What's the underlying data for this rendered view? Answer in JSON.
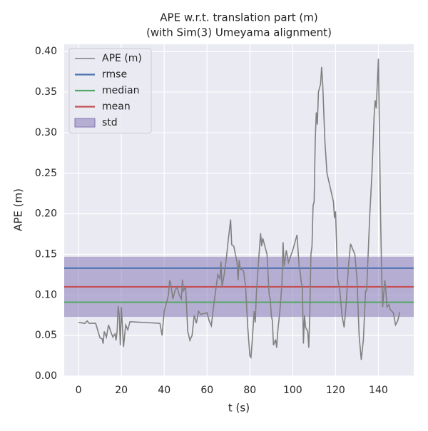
{
  "chart_data": {
    "type": "line",
    "title": "APE w.r.t. translation part (m)",
    "subtitle": "(with Sim(3) Umeyama alignment)",
    "x_label": "t (s)",
    "y_label": "APE (m)",
    "xlim": [
      -6.7,
      156.5
    ],
    "ylim": [
      0,
      0.409
    ],
    "xticks": [
      0,
      20,
      40,
      60,
      80,
      100,
      120,
      140
    ],
    "yticks": [
      {
        "value": 0,
        "label": "0.00"
      },
      {
        "value": 0.05,
        "label": "0.05"
      },
      {
        "value": 0.1,
        "label": "0.10"
      },
      {
        "value": 0.15,
        "label": "0.15"
      },
      {
        "value": 0.2,
        "label": "0.20"
      },
      {
        "value": 0.25,
        "label": "0.25"
      },
      {
        "value": 0.3,
        "label": "0.30"
      },
      {
        "value": 0.35,
        "label": "0.35"
      },
      {
        "value": 0.4,
        "label": "0.40"
      }
    ],
    "grid": true,
    "legend": "upper left",
    "series": [
      {
        "name": "APE (m)",
        "color": "#808080",
        "x": [
          0,
          3,
          4,
          5,
          8,
          10,
          11,
          11.5,
          12,
          13,
          14,
          15,
          16,
          17,
          17.5,
          18,
          18.5,
          19,
          19.5,
          20,
          20.5,
          21,
          22,
          23,
          24,
          38,
          39,
          40,
          41,
          42,
          42.5,
          43,
          44,
          45,
          46,
          47,
          48,
          48.5,
          49,
          50,
          51,
          52,
          53,
          54,
          55,
          56,
          57,
          60,
          61,
          62,
          63,
          64,
          65,
          66,
          66.5,
          67,
          68,
          69,
          70,
          71,
          71.5,
          72.5,
          74,
          74.5,
          75,
          75.5,
          77,
          78,
          79,
          80,
          80.5,
          81,
          82,
          82.5,
          83,
          84,
          85,
          85.5,
          86,
          88,
          89,
          89.5,
          90,
          90.5,
          91,
          92,
          92.5,
          93,
          94,
          95,
          95.5,
          96,
          97,
          98,
          100,
          102,
          103,
          103.5,
          104,
          104.5,
          105,
          105.5,
          106,
          107,
          107.5,
          108,
          108.5,
          109,
          109.5,
          110,
          110.5,
          111,
          111.5,
          112,
          113,
          113.5,
          114,
          115,
          116,
          119,
          119.5,
          120,
          120.5,
          121,
          122,
          122.5,
          123,
          124,
          125,
          126,
          127,
          129,
          130,
          131,
          132,
          133,
          134,
          134.5,
          136,
          137,
          138,
          138.5,
          139,
          140,
          140.5,
          141,
          141.5,
          142,
          143,
          143.5,
          144,
          145,
          145.5,
          147,
          148,
          149,
          150
        ],
        "values": [
          0.066,
          0.065,
          0.068,
          0.065,
          0.065,
          0.047,
          0.046,
          0.04,
          0.055,
          0.048,
          0.063,
          0.055,
          0.048,
          0.052,
          0.044,
          0.055,
          0.086,
          0.075,
          0.038,
          0.085,
          0.06,
          0.036,
          0.063,
          0.057,
          0.067,
          0.065,
          0.05,
          0.08,
          0.09,
          0.1,
          0.118,
          0.115,
          0.095,
          0.105,
          0.11,
          0.1,
          0.095,
          0.119,
          0.105,
          0.11,
          0.055,
          0.044,
          0.05,
          0.075,
          0.065,
          0.08,
          0.076,
          0.078,
          0.068,
          0.062,
          0.085,
          0.105,
          0.125,
          0.12,
          0.141,
          0.11,
          0.125,
          0.145,
          0.17,
          0.193,
          0.162,
          0.16,
          0.14,
          0.118,
          0.143,
          0.132,
          0.13,
          0.11,
          0.06,
          0.025,
          0.023,
          0.04,
          0.08,
          0.066,
          0.1,
          0.14,
          0.176,
          0.16,
          0.17,
          0.15,
          0.1,
          0.095,
          0.075,
          0.068,
          0.038,
          0.045,
          0.035,
          0.055,
          0.08,
          0.115,
          0.165,
          0.135,
          0.155,
          0.14,
          0.155,
          0.174,
          0.135,
          0.128,
          0.115,
          0.11,
          0.04,
          0.075,
          0.06,
          0.055,
          0.035,
          0.08,
          0.15,
          0.16,
          0.21,
          0.215,
          0.29,
          0.325,
          0.31,
          0.35,
          0.36,
          0.381,
          0.36,
          0.29,
          0.25,
          0.215,
          0.195,
          0.203,
          0.16,
          0.12,
          0.105,
          0.09,
          0.075,
          0.06,
          0.09,
          0.135,
          0.163,
          0.15,
          0.12,
          0.05,
          0.02,
          0.045,
          0.105,
          0.105,
          0.2,
          0.25,
          0.32,
          0.34,
          0.33,
          0.391,
          0.3,
          0.2,
          0.13,
          0.085,
          0.118,
          0.105,
          0.085,
          0.088,
          0.082,
          0.078,
          0.063,
          0.068,
          0.079
        ]
      }
    ],
    "stats": [
      {
        "name": "rmse",
        "color": "#4c72b0",
        "value": 0.133
      },
      {
        "name": "median",
        "color": "#55a868",
        "value": 0.091
      },
      {
        "name": "mean",
        "color": "#c44e52",
        "value": 0.11
      }
    ],
    "std": {
      "name": "std",
      "color": "#8172b2",
      "value": 0.037
    }
  }
}
